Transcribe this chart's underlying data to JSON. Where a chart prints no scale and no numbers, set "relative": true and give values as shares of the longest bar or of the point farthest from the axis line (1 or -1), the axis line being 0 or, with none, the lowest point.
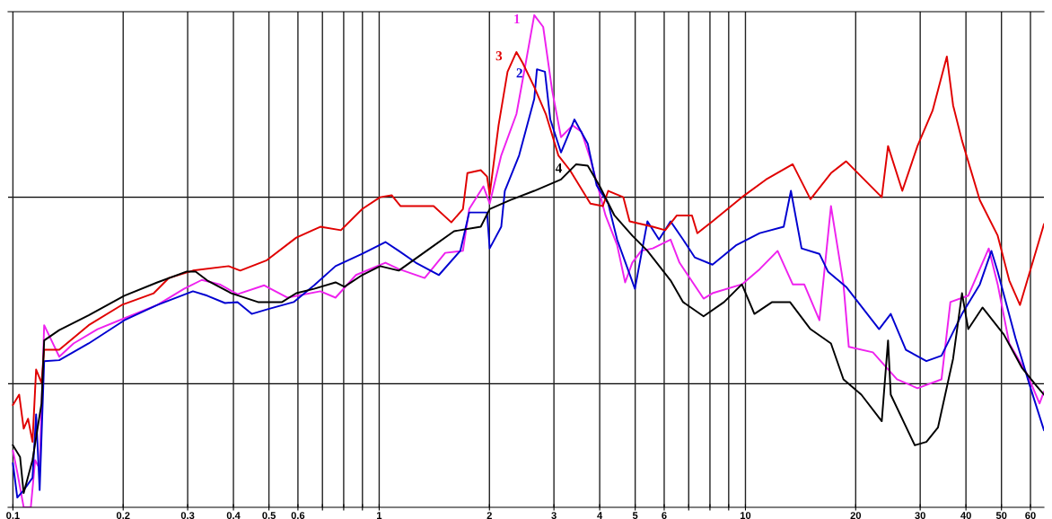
{
  "chart_data": {
    "type": "line",
    "relative": true,
    "log": "x",
    "grid": "x",
    "line_style": "solid",
    "marker": "none",
    "xlim": [
      0.097,
      65.3
    ],
    "xticks": [
      0.1,
      0.2,
      0.3,
      0.4,
      0.5,
      0.6,
      {
        "value": 0.7,
        "label": null
      },
      {
        "value": 0.8,
        "label": null
      },
      {
        "value": 0.9,
        "label": null
      },
      1,
      2,
      3,
      4,
      5,
      6,
      {
        "value": 7,
        "label": null
      },
      {
        "value": 8,
        "label": null
      },
      {
        "value": 9,
        "label": null
      },
      10,
      20,
      30,
      40,
      50,
      60
    ],
    "ref_lines": [
      {
        "axis": "y",
        "value": 0.63,
        "color": "#000000"
      },
      {
        "axis": "y",
        "value": 0.251,
        "color": "#000000"
      }
    ],
    "series": [
      {
        "name": "1",
        "color": "#ee22ee",
        "x": [
          0.1,
          0.1028,
          0.107,
          0.1119,
          0.115,
          0.1183,
          0.1217,
          0.1265,
          0.1338,
          0.1464,
          0.1702,
          0.2014,
          0.2479,
          0.2932,
          0.328,
          0.3668,
          0.4104,
          0.4855,
          0.5614,
          0.6909,
          0.76,
          0.8645,
          1.04,
          1.131,
          1.331,
          1.514,
          1.693,
          1.761,
          1.926,
          2.003,
          2.154,
          2.37,
          2.506,
          2.651,
          2.804,
          2.965,
          3.136,
          3.373,
          3.567,
          3.773,
          4.15,
          4.463,
          4.694,
          4.909,
          5.192,
          5.585,
          6.246,
          6.607,
          7.685,
          8.128,
          9.779,
          10.94,
          12.24,
          13.46,
          14.47,
          15.92,
          17.12,
          18.52,
          19.15,
          22.28,
          25.92,
          29.49,
          34.3,
          36.27,
          40.58,
          46.16,
          48.83,
          52.51,
          58.74,
          63.53,
          65.3
        ],
        "values": [
          0.115,
          0.071,
          0,
          0,
          0.096,
          0.078,
          0.37,
          0.344,
          0.306,
          0.333,
          0.362,
          0.384,
          0.411,
          0.444,
          0.462,
          0.453,
          0.433,
          0.451,
          0.426,
          0.439,
          0.426,
          0.472,
          0.497,
          0.484,
          0.466,
          0.517,
          0.521,
          0.606,
          0.652,
          0.617,
          0.715,
          0.799,
          0.898,
          1,
          0.976,
          0.848,
          0.752,
          0.776,
          0.763,
          0.708,
          0.593,
          0.533,
          0.457,
          0.497,
          0.521,
          0.526,
          0.544,
          0.497,
          0.424,
          0.435,
          0.453,
          0.484,
          0.521,
          0.453,
          0.453,
          0.38,
          0.612,
          0.453,
          0.326,
          0.315,
          0.26,
          0.242,
          0.26,
          0.417,
          0.43,
          0.526,
          0.453,
          0.333,
          0.271,
          0.211,
          0.235
        ]
      },
      {
        "name": "2",
        "color": "#0000d0",
        "x": [
          0.1,
          0.1028,
          0.107,
          0.1131,
          0.1157,
          0.1183,
          0.1217,
          0.1338,
          0.161,
          0.2014,
          0.2479,
          0.3101,
          0.3392,
          0.3794,
          0.4104,
          0.4487,
          0.4935,
          0.584,
          0.6643,
          0.76,
          0.899,
          1.04,
          1.131,
          1.259,
          1.456,
          1.665,
          1.761,
          1.97,
          2.003,
          2.154,
          2.203,
          2.41,
          2.651,
          2.696,
          2.835,
          2.932,
          3.136,
          3.263,
          3.412,
          3.71,
          3.924,
          4.22,
          4.463,
          4.992,
          5.4,
          5.808,
          6.246,
          6.756,
          7.267,
          8.128,
          9.456,
          10.94,
          12.72,
          13.31,
          14.23,
          15.92,
          16.8,
          18.83,
          23.17,
          24.93,
          27.42,
          31.19,
          34.3,
          39.02,
          43.65,
          46.95,
          48.83,
          54.61,
          60.06,
          65.3
        ],
        "values": [
          0.089,
          0.02,
          0.035,
          0.06,
          0.189,
          0.035,
          0.297,
          0.299,
          0.333,
          0.38,
          0.411,
          0.439,
          0.43,
          0.415,
          0.417,
          0.393,
          0.402,
          0.417,
          0.451,
          0.49,
          0.515,
          0.539,
          0.521,
          0.497,
          0.472,
          0.521,
          0.599,
          0.599,
          0.526,
          0.57,
          0.643,
          0.715,
          0.83,
          0.89,
          0.885,
          0.788,
          0.721,
          0.752,
          0.788,
          0.739,
          0.654,
          0.617,
          0.544,
          0.444,
          0.581,
          0.544,
          0.581,
          0.544,
          0.508,
          0.493,
          0.533,
          0.557,
          0.57,
          0.643,
          0.526,
          0.515,
          0.479,
          0.448,
          0.362,
          0.393,
          0.32,
          0.297,
          0.308,
          0.393,
          0.453,
          0.521,
          0.479,
          0.344,
          0.242,
          0.157
        ]
      },
      {
        "name": "3",
        "color": "#e00000",
        "x": [
          0.1,
          0.104,
          0.107,
          0.11,
          0.1131,
          0.1157,
          0.1197,
          0.1217,
          0.1338,
          0.161,
          0.1981,
          0.2424,
          0.2666,
          0.3101,
          0.388,
          0.4174,
          0.4935,
          0.5939,
          0.6909,
          0.7861,
          0.899,
          1.0056,
          1.0816,
          1.144,
          1.408,
          1.574,
          1.693,
          1.741,
          1.894,
          1.97,
          2.003,
          2.118,
          2.241,
          2.37,
          2.464,
          2.651,
          2.851,
          3.084,
          3.317,
          3.773,
          4.08,
          4.22,
          4.642,
          4.827,
          5.585,
          6.039,
          6.497,
          7.145,
          7.39,
          8.128,
          9.779,
          11.38,
          13.46,
          15.05,
          17.12,
          18.83,
          23.56,
          24.51,
          26.81,
          29.49,
          32.43,
          35.47,
          36.89,
          39.02,
          43.65,
          48.83,
          52.51,
          56.17,
          61.08,
          65.3
        ],
        "values": [
          0.208,
          0.229,
          0.16,
          0.18,
          0.133,
          0.28,
          0.253,
          0.32,
          0.32,
          0.37,
          0.411,
          0.435,
          0.466,
          0.481,
          0.49,
          0.481,
          0.502,
          0.548,
          0.57,
          0.563,
          0.606,
          0.63,
          0.634,
          0.612,
          0.612,
          0.579,
          0.606,
          0.679,
          0.685,
          0.672,
          0.635,
          0.776,
          0.885,
          0.925,
          0.903,
          0.854,
          0.799,
          0.715,
          0.685,
          0.617,
          0.612,
          0.643,
          0.63,
          0.581,
          0.57,
          0.563,
          0.593,
          0.593,
          0.557,
          0.581,
          0.63,
          0.666,
          0.697,
          0.626,
          0.679,
          0.703,
          0.63,
          0.734,
          0.643,
          0.734,
          0.806,
          0.916,
          0.817,
          0.745,
          0.624,
          0.552,
          0.461,
          0.411,
          0.502,
          0.575
        ]
      },
      {
        "name": "4",
        "color": "#000000",
        "x": [
          0.1,
          0.1046,
          0.107,
          0.1131,
          0.1197,
          0.1217,
          0.1338,
          0.161,
          0.2014,
          0.2479,
          0.2982,
          0.3154,
          0.3392,
          0.3947,
          0.4669,
          0.543,
          0.5939,
          0.6643,
          0.76,
          0.8037,
          0.899,
          1.0056,
          1.131,
          1.376,
          1.601,
          1.894,
          2.003,
          2.278,
          2.651,
          3.136,
          3.45,
          3.71,
          3.99,
          4.389,
          4.909,
          5.4,
          6.246,
          6.756,
          7.685,
          8.744,
          9.779,
          10.58,
          11.83,
          13.23,
          15.05,
          17.12,
          18.52,
          20.72,
          23.56,
          24.51,
          24.93,
          29.0,
          31.19,
          33.54,
          36.89,
          39.02,
          40.58,
          44.38,
          50.77,
          56.8,
          62.13,
          65.3
        ],
        "values": [
          0.126,
          0.102,
          0.029,
          0.096,
          0.211,
          0.339,
          0.36,
          0.39,
          0.43,
          0.457,
          0.479,
          0.479,
          0.461,
          0.435,
          0.417,
          0.417,
          0.435,
          0.444,
          0.457,
          0.448,
          0.472,
          0.49,
          0.481,
          0.526,
          0.561,
          0.57,
          0.606,
          0.624,
          0.643,
          0.666,
          0.697,
          0.694,
          0.654,
          0.593,
          0.552,
          0.521,
          0.461,
          0.417,
          0.388,
          0.417,
          0.453,
          0.393,
          0.417,
          0.417,
          0.362,
          0.333,
          0.26,
          0.229,
          0.175,
          0.339,
          0.229,
          0.126,
          0.133,
          0.162,
          0.302,
          0.435,
          0.362,
          0.406,
          0.351,
          0.284,
          0.248,
          0.229
        ]
      }
    ]
  }
}
